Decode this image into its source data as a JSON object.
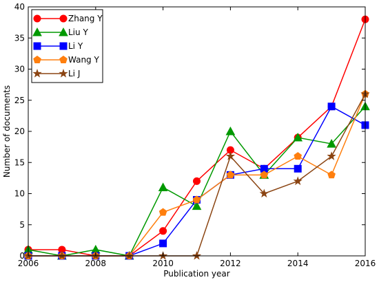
{
  "chart_data": {
    "type": "line",
    "xlabel": "Publication year",
    "ylabel": "Number of documents",
    "xlim": [
      2006,
      2016
    ],
    "ylim": [
      0,
      40
    ],
    "xticks": [
      2006,
      2008,
      2010,
      2012,
      2014,
      2016
    ],
    "yticks": [
      0,
      5,
      10,
      15,
      20,
      25,
      30,
      35,
      40
    ],
    "grid": false,
    "legend_position": "top-left",
    "x": [
      2006,
      2007,
      2008,
      2009,
      2010,
      2011,
      2012,
      2013,
      2014,
      2015,
      2016
    ],
    "series": [
      {
        "name": "Zhang Y",
        "color": "#ff0000",
        "marker": "circle",
        "values": [
          1,
          1,
          0,
          0,
          4,
          12,
          17,
          14,
          19,
          24,
          38
        ]
      },
      {
        "name": "Liu Y",
        "color": "#009900",
        "marker": "triangle",
        "values": [
          1,
          0,
          1,
          0,
          11,
          8,
          20,
          13,
          19,
          18,
          24
        ]
      },
      {
        "name": "Li Y",
        "color": "#0000ff",
        "marker": "square",
        "values": [
          0,
          0,
          0,
          0,
          2,
          9,
          13,
          14,
          14,
          24,
          21
        ]
      },
      {
        "name": "Wang Y",
        "color": "#ff7f0e",
        "marker": "pentagon",
        "values": [
          0,
          0,
          0,
          0,
          7,
          9,
          13,
          13,
          16,
          13,
          26
        ]
      },
      {
        "name": "Li J",
        "color": "#8b4513",
        "marker": "star",
        "values": [
          0,
          0,
          0,
          0,
          0,
          0,
          16,
          10,
          12,
          16,
          26
        ]
      }
    ]
  }
}
